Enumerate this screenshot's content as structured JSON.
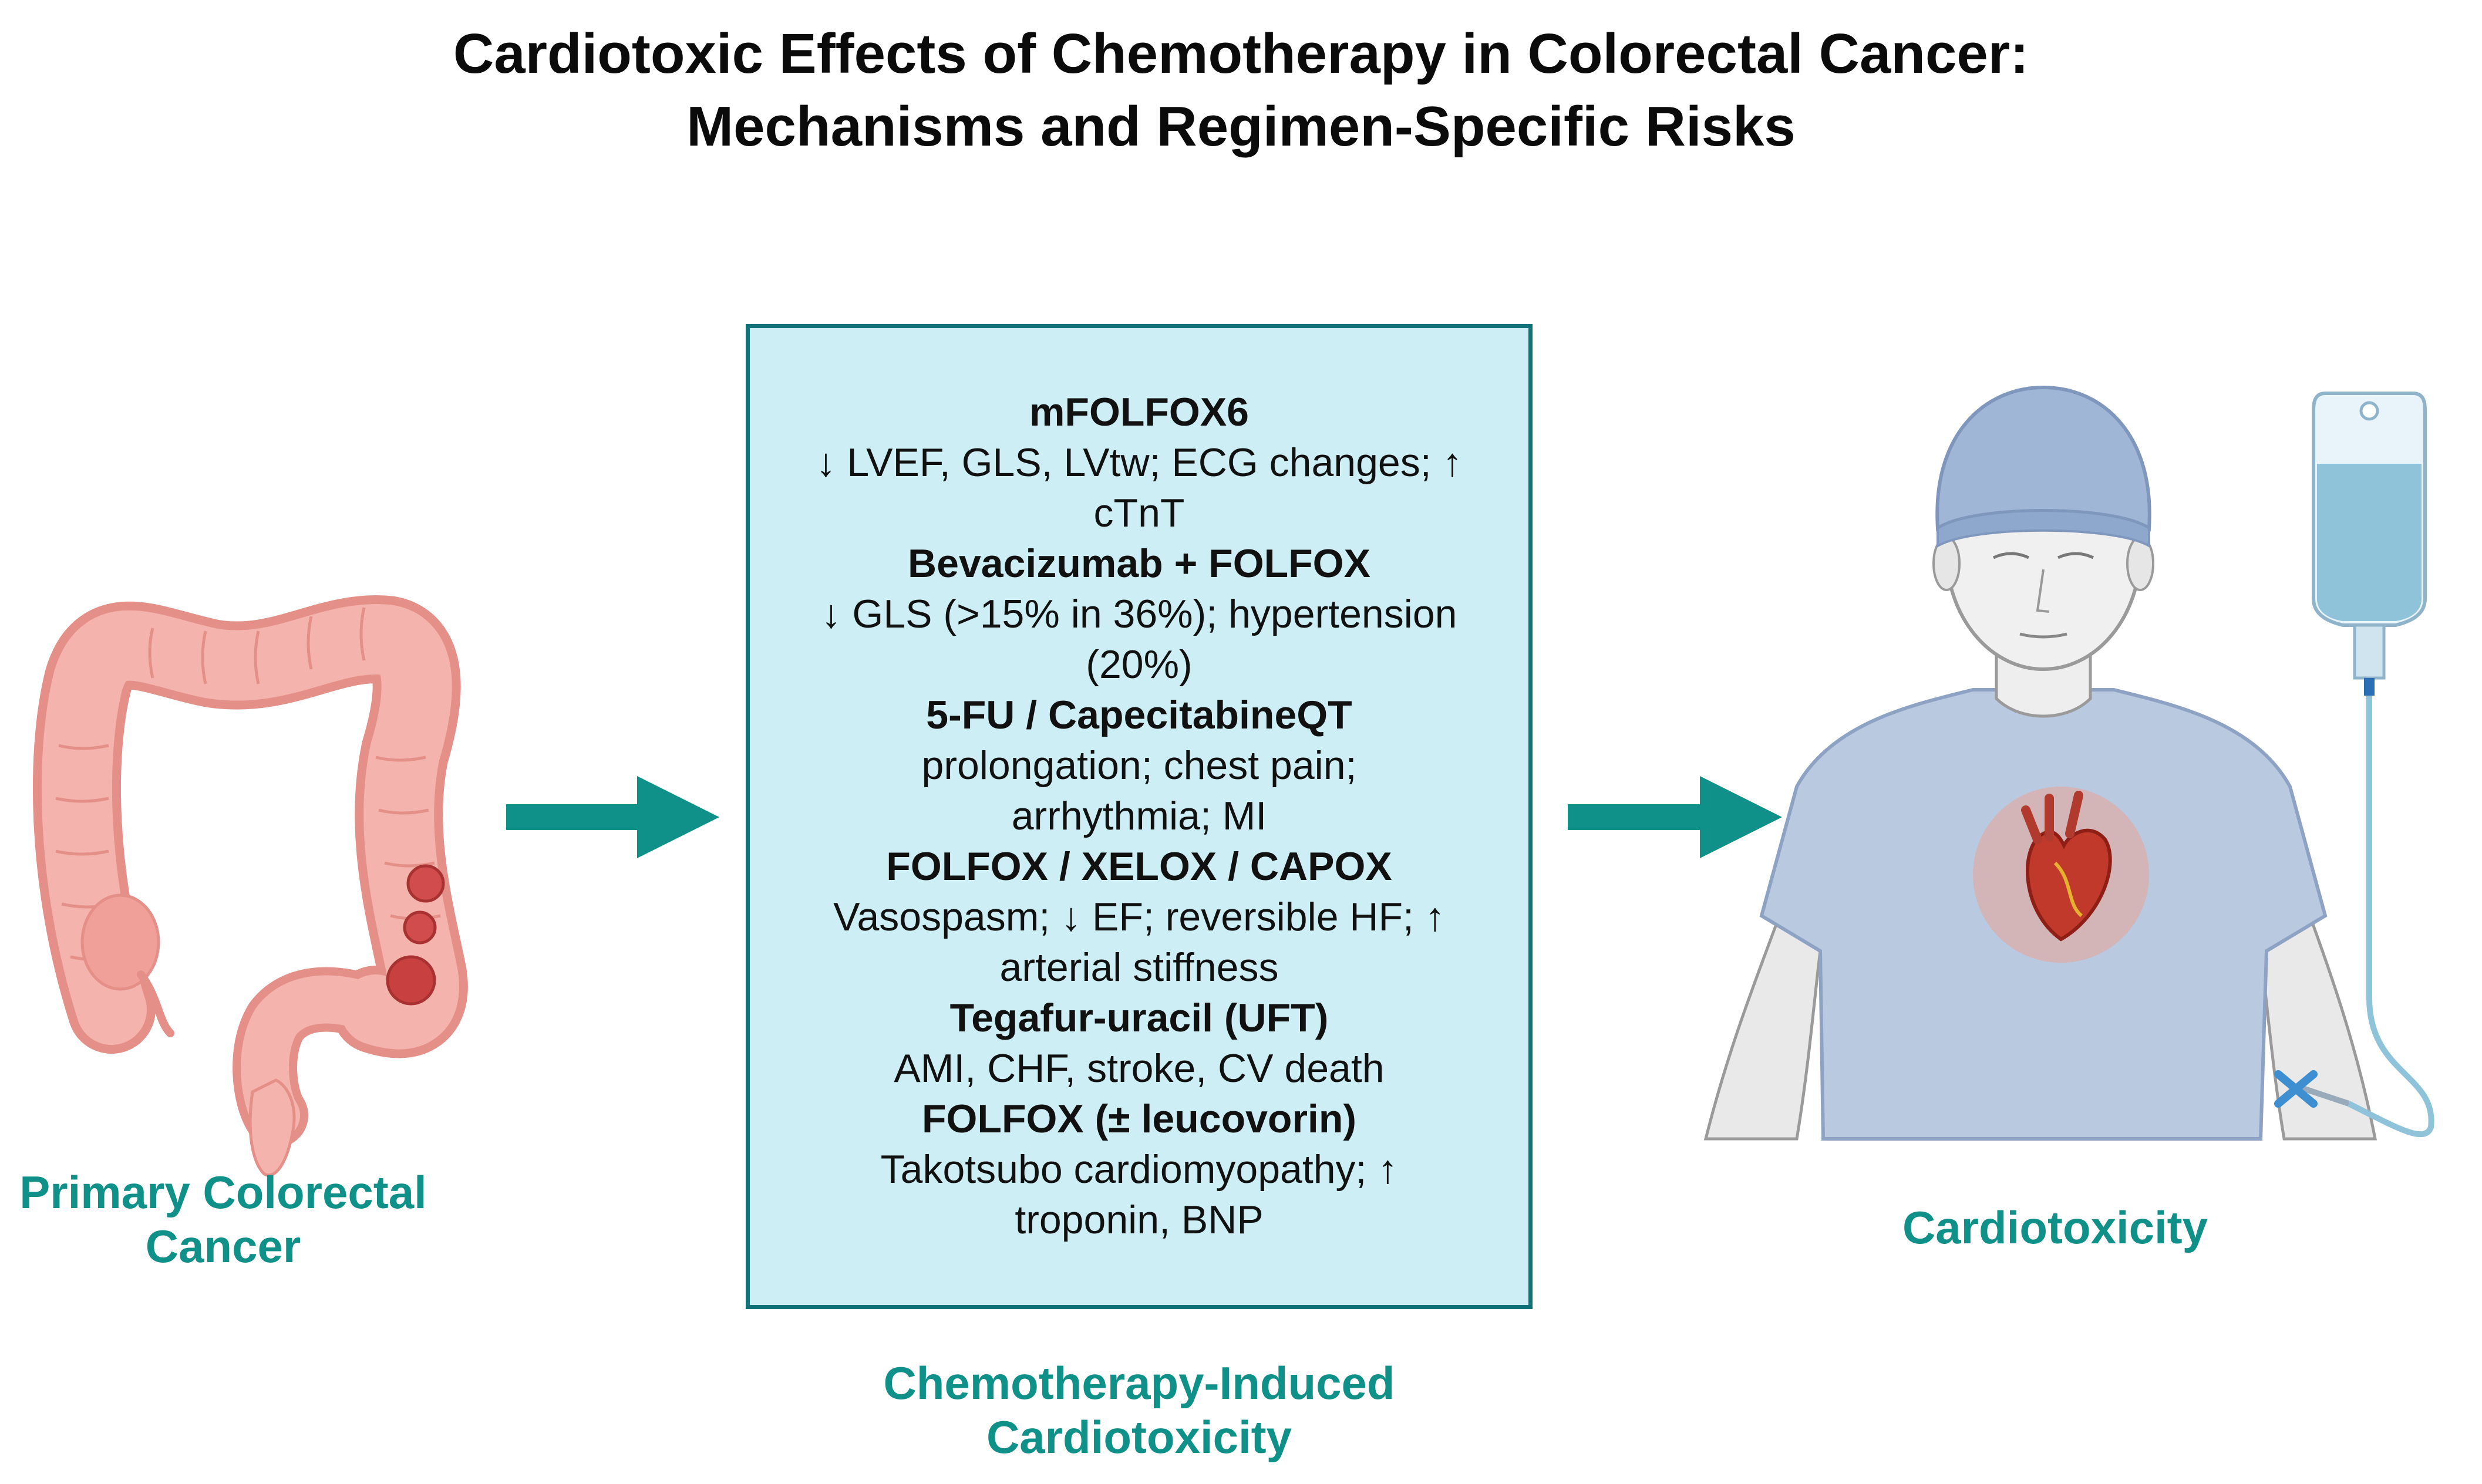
{
  "title": {
    "line1": "Cardiotoxic Effects of Chemotherapy in Colorectal Cancer:",
    "line2": "Mechanisms and Regimen-Specific Risks"
  },
  "labels": {
    "left_line1": "Primary Colorectal",
    "left_line2": "Cancer",
    "bottom_line1": "Chemotherapy-Induced",
    "bottom_line2": "Cardiotoxicity",
    "right": "Cardiotoxicity"
  },
  "regimens": [
    {
      "drug": "mFOLFOX6",
      "effects": [
        "↓ LVEF, GLS, LVtw; ECG changes; ↑",
        "cTnT"
      ]
    },
    {
      "drug": "Bevacizumab + FOLFOX",
      "effects": [
        "↓ GLS (>15% in 36%); hypertension",
        "(20%)"
      ]
    },
    {
      "drug": "5-FU / CapecitabineQT",
      "effects": [
        "prolongation; chest pain;",
        "arrhythmia; MI"
      ]
    },
    {
      "drug": "FOLFOX / XELOX / CAPOX",
      "effects": [
        "Vasospasm; ↓ EF; reversible HF; ↑",
        "arterial stiffness"
      ]
    },
    {
      "drug": "Tegafur-uracil (UFT)",
      "effects": [
        "AMI, CHF, stroke, CV death"
      ]
    },
    {
      "drug": "FOLFOX (± leucovorin)",
      "effects": [
        "Takotsubo cardiomyopathy; ↑",
        "troponin, BNP"
      ]
    }
  ],
  "colors": {
    "accent": "#0f9088",
    "panel_fill": "#cdeef5",
    "panel_border": "#137179",
    "colon": "#f2a6a0",
    "tumor": "#d14d4d",
    "shirt": "#b9c9e0",
    "heart": "#c0392b"
  },
  "icons": [
    "colon-illustration",
    "arrow-right-icon",
    "patient-illustration",
    "heart-icon",
    "iv-bag-icon"
  ]
}
